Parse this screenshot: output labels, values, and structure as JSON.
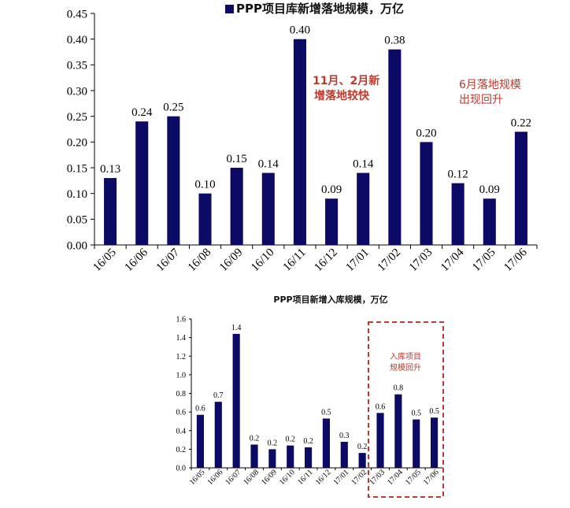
{
  "chart_data": [
    {
      "type": "bar",
      "legend": "PPP项目库新增落地规模，万亿",
      "categories": [
        "16/05",
        "16/06",
        "16/07",
        "16/08",
        "16/09",
        "16/10",
        "16/11",
        "16/12",
        "17/01",
        "17/02",
        "17/03",
        "17/04",
        "17/05",
        "17/06"
      ],
      "values": [
        0.13,
        0.24,
        0.25,
        0.1,
        0.15,
        0.14,
        0.4,
        0.09,
        0.14,
        0.38,
        0.2,
        0.12,
        0.09,
        0.22
      ],
      "data_labels": [
        "0.13",
        "0.24",
        "0.25",
        "0.10",
        "0.15",
        "0.14",
        "0.40",
        "0.09",
        "0.14",
        "0.38",
        "0.20",
        "0.12",
        "0.09",
        "0.22"
      ],
      "yticks": [
        "0.00",
        "0.05",
        "0.10",
        "0.15",
        "0.20",
        "0.25",
        "0.30",
        "0.35",
        "0.40",
        "0.45"
      ],
      "ylim": [
        0,
        0.45
      ],
      "annotations": [
        {
          "lines": [
            "11月、2月新",
            "增落地较快"
          ],
          "color": "#c0392b"
        },
        {
          "lines": [
            "6月落地规模",
            "出现回升"
          ],
          "color": "#c0392b"
        }
      ],
      "bar_color": "#0b0b66",
      "grid": false,
      "legend_position": "top"
    },
    {
      "type": "bar",
      "title": "PPP项目新增入库规模，万亿",
      "categories": [
        "16/05",
        "16/06",
        "16/07",
        "16/08",
        "16/09",
        "16/10",
        "16/11",
        "16/12",
        "17/01",
        "17/02",
        "17/03",
        "17/04",
        "17/05",
        "17/06"
      ],
      "values": [
        0.57,
        0.71,
        1.44,
        0.25,
        0.2,
        0.24,
        0.22,
        0.53,
        0.28,
        0.16,
        0.59,
        0.79,
        0.52,
        0.54
      ],
      "data_labels": [
        "0.6",
        "0.7",
        "1.4",
        "0.2",
        "0.2",
        "0.2",
        "0.2",
        "0.5",
        "0.3",
        "0.2",
        "0.6",
        "0.8",
        "0.5",
        "0.5"
      ],
      "yticks": [
        "0.0",
        "0.2",
        "0.4",
        "0.6",
        "0.8",
        "1.0",
        "1.2",
        "1.4",
        "1.6"
      ],
      "ylim": [
        0,
        1.6
      ],
      "highlight": {
        "lines": [
          "入库项目",
          "规模回升"
        ],
        "color": "#c0392b",
        "from_category": "17/03",
        "to_category": "17/06"
      },
      "bar_color": "#0b0b66",
      "grid": false
    }
  ]
}
